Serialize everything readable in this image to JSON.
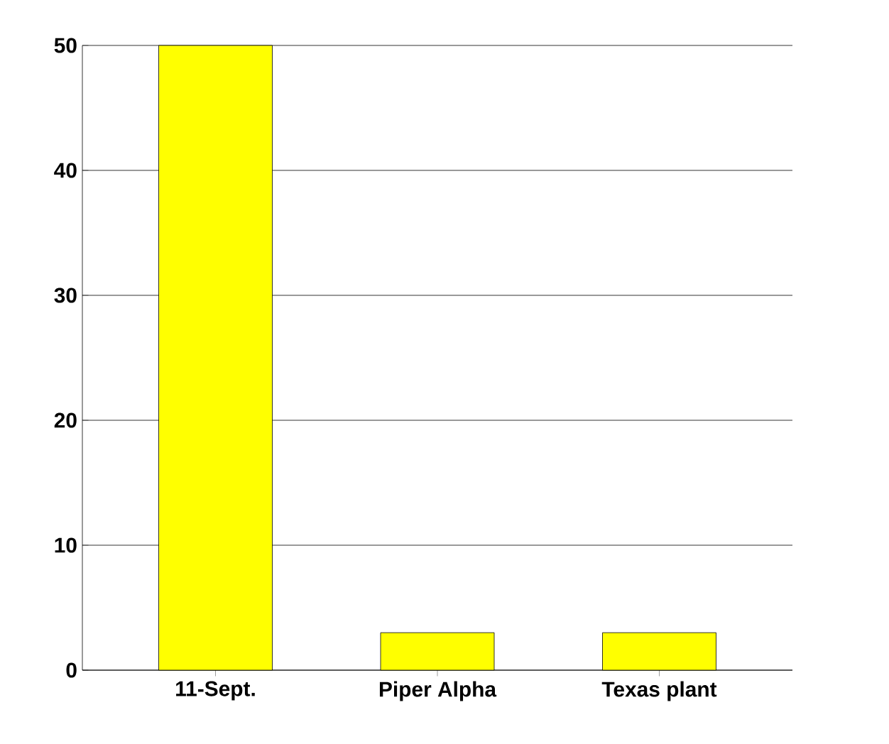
{
  "chart_data": {
    "type": "bar",
    "categories": [
      "11-Sept.",
      "Piper Alpha",
      "Texas plant"
    ],
    "values": [
      50,
      3,
      3
    ],
    "color": "#ffff00",
    "ylim": [
      0,
      50
    ],
    "yticks": [
      0,
      10,
      20,
      30,
      40,
      50
    ],
    "grid": "y"
  }
}
